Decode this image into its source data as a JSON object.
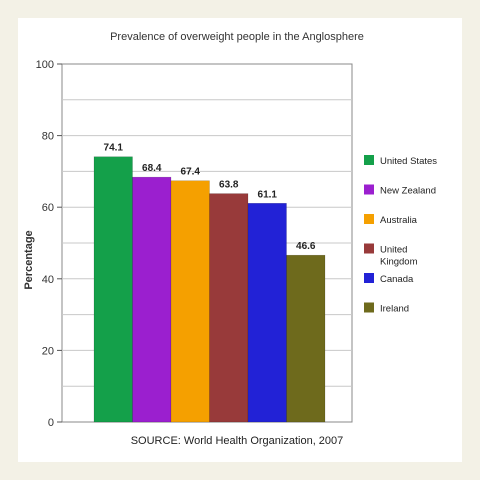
{
  "chart_data": {
    "type": "bar",
    "title": "Prevalence of overweight people in the Anglosphere",
    "xlabel": "",
    "ylabel": "Percentage",
    "ylim": [
      0,
      100
    ],
    "yticks": [
      0,
      20,
      40,
      60,
      80,
      100
    ],
    "grid": true,
    "legend_position": "right",
    "categories": [
      "United States",
      "New Zealand",
      "Australia",
      "United Kingdom",
      "Canada",
      "Ireland"
    ],
    "legend_labels": [
      [
        "United States"
      ],
      [
        "New Zealand"
      ],
      [
        "Australia"
      ],
      [
        "United",
        "Kingdom"
      ],
      [
        "Canada"
      ],
      [
        "Ireland"
      ]
    ],
    "values": [
      74.1,
      68.4,
      67.4,
      63.8,
      61.1,
      46.6
    ],
    "value_labels": [
      "74.1",
      "68.4",
      "67.4",
      "63.8",
      "61.1",
      "46.6"
    ],
    "colors": [
      "#14a04a",
      "#9b1fcf",
      "#f5a000",
      "#983a3a",
      "#2222d6",
      "#6e6a1c"
    ],
    "source": "SOURCE: World Health Organization, 2007"
  }
}
